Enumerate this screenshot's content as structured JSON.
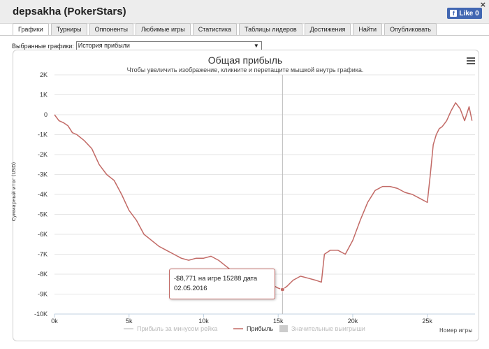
{
  "window": {
    "title": "depsakha (PokerStars)",
    "close_label": "×",
    "like_label": "Like 0",
    "fb_glyph": "f"
  },
  "tabs": [
    {
      "label": "Графики",
      "active": true
    },
    {
      "label": "Турниры"
    },
    {
      "label": "Оппоненты"
    },
    {
      "label": "Любимые игры"
    },
    {
      "label": "Статистика"
    },
    {
      "label": "Таблицы лидеров"
    },
    {
      "label": "Достижения"
    },
    {
      "label": "Найти"
    },
    {
      "label": "Опубликовать"
    }
  ],
  "graph_select": {
    "label": "Выбранные графики:",
    "value": "История прибыли"
  },
  "chart_data": {
    "type": "line",
    "title": "Общая прибыль",
    "subtitle": "Чтобы увеличить изображение, кликните и перетащите мышкой внутрь графика.",
    "ylabel": "Суммарный итог (USD)",
    "xlabel": "Номер игры",
    "xlim": [
      0,
      28200
    ],
    "ylim": [
      -10000,
      2000
    ],
    "x_ticks": [
      0,
      5000,
      10000,
      15000,
      20000,
      25000
    ],
    "x_tick_labels": [
      "0k",
      "5k",
      "10k",
      "15k",
      "20k",
      "25k"
    ],
    "y_ticks": [
      2000,
      1000,
      0,
      -1000,
      -2000,
      -3000,
      -4000,
      -5000,
      -6000,
      -7000,
      -8000,
      -9000,
      -10000
    ],
    "y_tick_labels": [
      "2K",
      "1K",
      "0",
      "-1K",
      "-2K",
      "-3K",
      "-4K",
      "-5K",
      "-6K",
      "-7K",
      "-8K",
      "-9K",
      "-10K"
    ],
    "legend": [
      "Прибыль за минусом рейка",
      "Прибыль",
      "Значительные выигрыши"
    ],
    "series": [
      {
        "name": "Прибыль",
        "color": "#c26a66",
        "x": [
          0,
          300,
          600,
          900,
          1200,
          1500,
          2000,
          2500,
          3000,
          3500,
          4000,
          4500,
          5000,
          5500,
          6000,
          6500,
          7000,
          7500,
          8000,
          8500,
          9000,
          9500,
          10000,
          10500,
          11000,
          11500,
          12000,
          12500,
          13000,
          13500,
          14000,
          14500,
          15000,
          15288,
          15600,
          16000,
          16500,
          17000,
          17500,
          17900,
          18100,
          18500,
          19000,
          19500,
          20000,
          20500,
          21000,
          21500,
          22000,
          22500,
          23000,
          23500,
          24000,
          24500,
          25000,
          25200,
          25400,
          25600,
          25800,
          26000,
          26300,
          26600,
          26900,
          27200,
          27500,
          27800,
          28000
        ],
        "y": [
          0,
          -300,
          -400,
          -550,
          -900,
          -1000,
          -1300,
          -1700,
          -2500,
          -3000,
          -3300,
          -4000,
          -4800,
          -5300,
          -6000,
          -6300,
          -6600,
          -6800,
          -7000,
          -7200,
          -7300,
          -7200,
          -7200,
          -7100,
          -7300,
          -7600,
          -7900,
          -8000,
          -8100,
          -8300,
          -8400,
          -8500,
          -8700,
          -8771,
          -8600,
          -8300,
          -8100,
          -8200,
          -8300,
          -8400,
          -7000,
          -6800,
          -6800,
          -7000,
          -6300,
          -5300,
          -4400,
          -3800,
          -3600,
          -3600,
          -3700,
          -3900,
          -4000,
          -4200,
          -4400,
          -3000,
          -1500,
          -1000,
          -700,
          -600,
          -300,
          200,
          600,
          300,
          -300,
          400,
          -300
        ]
      }
    ],
    "tooltip": {
      "line1": "-$8,771 на игре 15288 дата",
      "line2": "02.05.2016",
      "x": 15288,
      "y": -8771
    },
    "crosshair_x": 15288
  }
}
